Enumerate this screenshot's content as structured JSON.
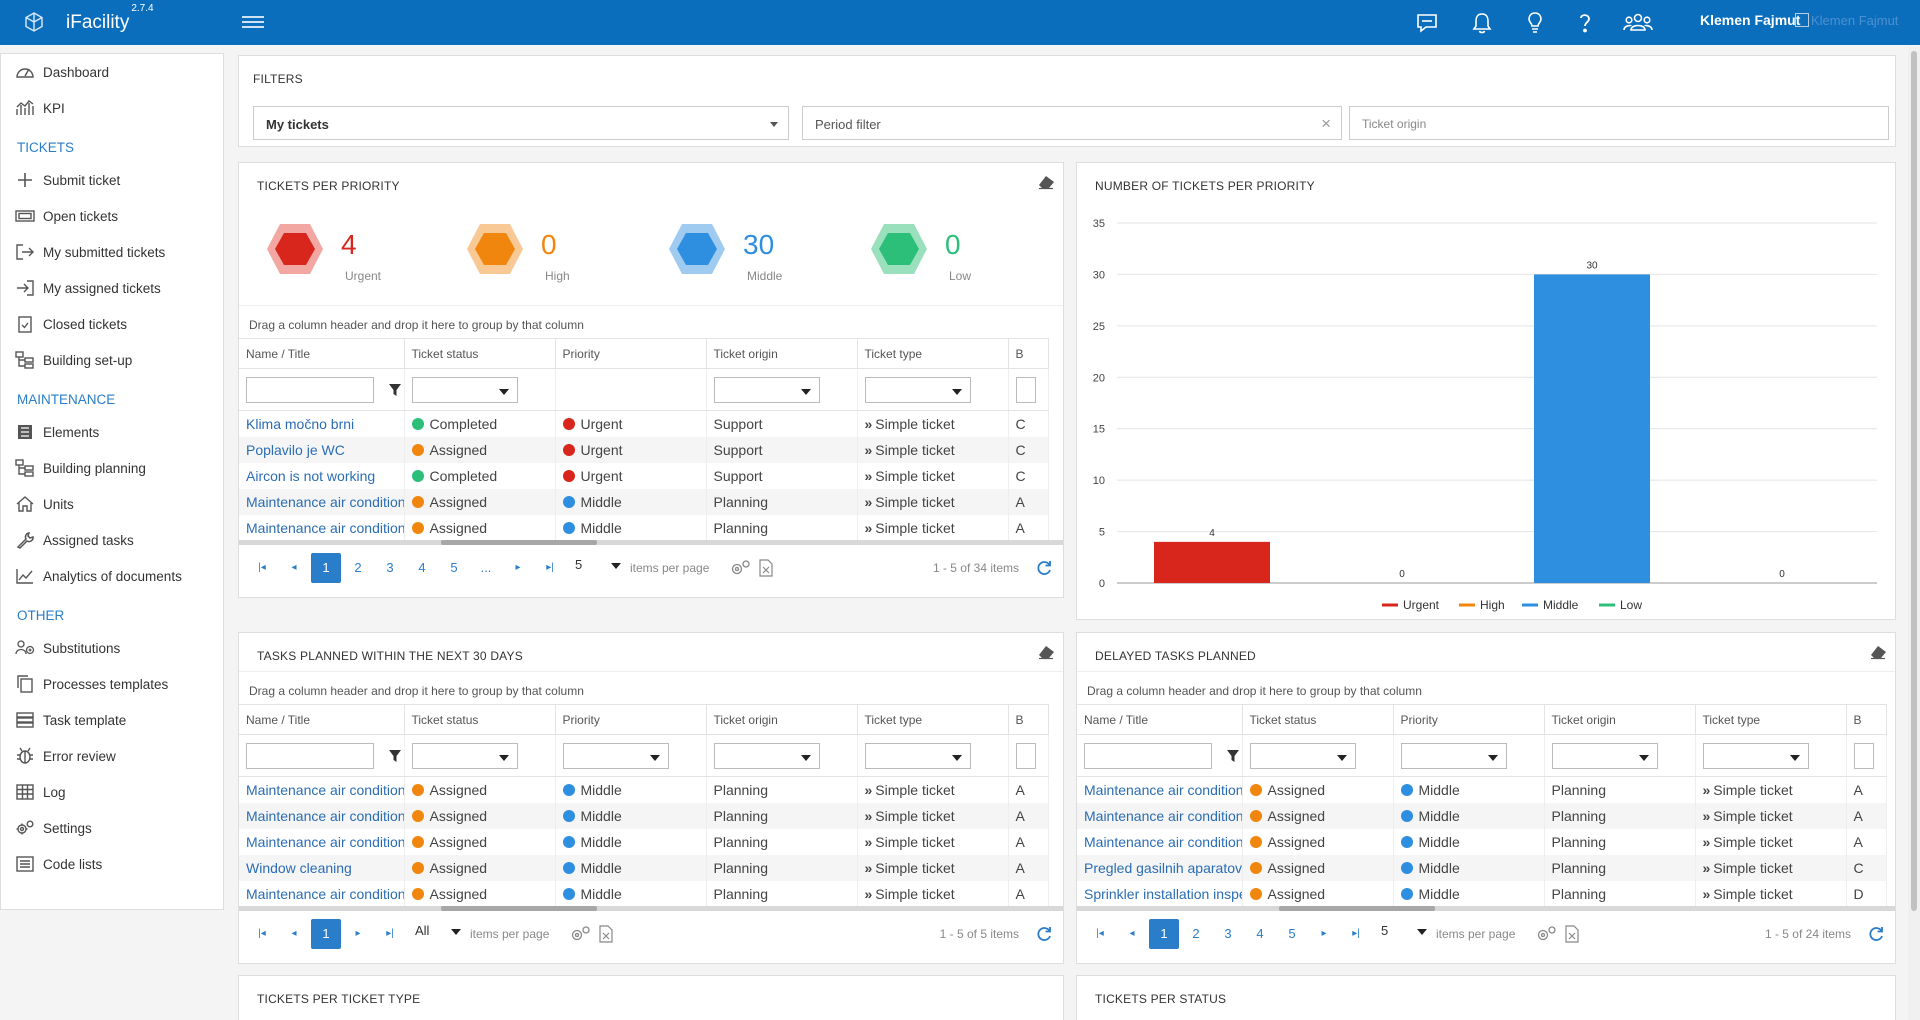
{
  "app": {
    "name": "iFacility",
    "version": "2.7.4",
    "user": "Klemen Fajmut",
    "user_image_alt": "Klemen Fajmut"
  },
  "topbar_icons": [
    "chat-icon",
    "bell-icon",
    "lightbulb-icon",
    "help-icon",
    "users-icon"
  ],
  "sidebar": {
    "items": [
      {
        "label": "Dashboard",
        "icon": "dashboard-icon"
      },
      {
        "label": "KPI",
        "icon": "kpi-icon"
      }
    ],
    "tickets_head": "TICKETS",
    "tickets": [
      {
        "label": "Submit ticket",
        "icon": "plus-icon"
      },
      {
        "label": "Open tickets",
        "icon": "ticket-icon"
      },
      {
        "label": "My submitted tickets",
        "icon": "sign-out-icon"
      },
      {
        "label": "My assigned tickets",
        "icon": "sign-in-icon"
      },
      {
        "label": "Closed tickets",
        "icon": "clipboard-check-icon"
      },
      {
        "label": "Building set-up",
        "icon": "building-tree-icon"
      }
    ],
    "maintenance_head": "MAINTENANCE",
    "maintenance": [
      {
        "label": "Elements",
        "icon": "list-icon"
      },
      {
        "label": "Building planning",
        "icon": "building-tree-icon"
      },
      {
        "label": "Units",
        "icon": "home-icon"
      },
      {
        "label": "Assigned tasks",
        "icon": "wrench-icon"
      },
      {
        "label": "Analytics of documents",
        "icon": "line-chart-icon"
      }
    ],
    "other_head": "OTHER",
    "other": [
      {
        "label": "Substitutions",
        "icon": "user-swap-icon"
      },
      {
        "label": "Processes templates",
        "icon": "copy-icon"
      },
      {
        "label": "Task template",
        "icon": "task-list-icon"
      },
      {
        "label": "Error review",
        "icon": "bug-icon"
      },
      {
        "label": "Log",
        "icon": "table-icon"
      },
      {
        "label": "Settings",
        "icon": "cogs-icon"
      },
      {
        "label": "Code lists",
        "icon": "list-alt-icon"
      }
    ]
  },
  "filters": {
    "title": "FILTERS",
    "my_tickets": "My tickets",
    "period_placeholder": "Period filter",
    "origin_placeholder": "Ticket origin"
  },
  "priority_panel": {
    "title": "TICKETS PER PRIORITY",
    "counts": [
      {
        "label": "Urgent",
        "value": "4",
        "color": "#d9261c",
        "halo": "#f2a7a2"
      },
      {
        "label": "High",
        "value": "0",
        "color": "#f0860d",
        "halo": "#f8c995"
      },
      {
        "label": "Middle",
        "value": "30",
        "color": "#2e8ee0",
        "halo": "#9fcbf1"
      },
      {
        "label": "Low",
        "value": "0",
        "color": "#2bbf7a",
        "halo": "#9ae0bd"
      }
    ]
  },
  "grid_common": {
    "group_hint": "Drag a column header and drop it here to group by that column",
    "columns": [
      "Name / Title",
      "Ticket status",
      "Priority",
      "Ticket origin",
      "Ticket type",
      "B"
    ],
    "items_per_page": "items per page"
  },
  "status_colors": {
    "Completed": "#2bbf7a",
    "Assigned": "#f0860d",
    "Urgent": "#d9261c",
    "Middle": "#2e8ee0"
  },
  "tickets_grid": {
    "rows": [
      {
        "name": "Klima močno brni",
        "status": "Completed",
        "priority": "Urgent",
        "origin": "Support",
        "type": "Simple ticket",
        "extra": "C"
      },
      {
        "name": "Poplavilo je WC",
        "status": "Assigned",
        "priority": "Urgent",
        "origin": "Support",
        "type": "Simple ticket",
        "extra": "C"
      },
      {
        "name": "Aircon is not working",
        "status": "Completed",
        "priority": "Urgent",
        "origin": "Support",
        "type": "Simple ticket",
        "extra": "C"
      },
      {
        "name": "Maintenance air conditioners",
        "status": "Assigned",
        "priority": "Middle",
        "origin": "Planning",
        "type": "Simple ticket",
        "extra": "A"
      },
      {
        "name": "Maintenance air conditioners",
        "status": "Assigned",
        "priority": "Middle",
        "origin": "Planning",
        "type": "Simple ticket",
        "extra": "A"
      }
    ],
    "pages": [
      "1",
      "2",
      "3",
      "4",
      "5",
      "..."
    ],
    "page_size": "5",
    "info": "1 - 5 of 34 items"
  },
  "chart_panel": {
    "title": "NUMBER OF TICKETS PER PRIORITY"
  },
  "chart_data": {
    "type": "bar",
    "categories": [
      "Urgent",
      "High",
      "Middle",
      "Low"
    ],
    "values": [
      4,
      0,
      30,
      0
    ],
    "colors": [
      "#d9261c",
      "#f0860d",
      "#2e8ee0",
      "#2bbf7a"
    ],
    "ylim": [
      0,
      35
    ],
    "yticks": [
      0,
      5,
      10,
      15,
      20,
      25,
      30,
      35
    ],
    "legend": [
      "Urgent",
      "High",
      "Middle",
      "Low"
    ],
    "legend_position": "bottom",
    "grid": true
  },
  "tasks30_panel": {
    "title": "TASKS PLANNED WITHIN THE NEXT 30 DAYS",
    "rows": [
      {
        "name": "Maintenance air conditioners",
        "status": "Assigned",
        "priority": "Middle",
        "origin": "Planning",
        "type": "Simple ticket",
        "extra": "A"
      },
      {
        "name": "Maintenance air conditioners",
        "status": "Assigned",
        "priority": "Middle",
        "origin": "Planning",
        "type": "Simple ticket",
        "extra": "A"
      },
      {
        "name": "Maintenance air conditioners",
        "status": "Assigned",
        "priority": "Middle",
        "origin": "Planning",
        "type": "Simple ticket",
        "extra": "A"
      },
      {
        "name": "Window cleaning",
        "status": "Assigned",
        "priority": "Middle",
        "origin": "Planning",
        "type": "Simple ticket",
        "extra": "A"
      },
      {
        "name": "Maintenance air conditioners",
        "status": "Assigned",
        "priority": "Middle",
        "origin": "Planning",
        "type": "Simple ticket",
        "extra": "A"
      }
    ],
    "pages": [
      "1"
    ],
    "page_size": "All",
    "info": "1 - 5 of 5 items"
  },
  "delayed_panel": {
    "title": "DELAYED TASKS PLANNED",
    "rows": [
      {
        "name": "Maintenance air conditioners",
        "status": "Assigned",
        "priority": "Middle",
        "origin": "Planning",
        "type": "Simple ticket",
        "extra": "A"
      },
      {
        "name": "Maintenance air conditioners",
        "status": "Assigned",
        "priority": "Middle",
        "origin": "Planning",
        "type": "Simple ticket",
        "extra": "A"
      },
      {
        "name": "Maintenance air conditioners",
        "status": "Assigned",
        "priority": "Middle",
        "origin": "Planning",
        "type": "Simple ticket",
        "extra": "A"
      },
      {
        "name": "Pregled gasilnih aparatov",
        "status": "Assigned",
        "priority": "Middle",
        "origin": "Planning",
        "type": "Simple ticket",
        "extra": "C"
      },
      {
        "name": "Sprinkler installation inspect...",
        "status": "Assigned",
        "priority": "Middle",
        "origin": "Planning",
        "type": "Simple ticket",
        "extra": "D"
      }
    ],
    "pages": [
      "1",
      "2",
      "3",
      "4",
      "5"
    ],
    "page_size": "5",
    "info": "1 - 5 of 24 items"
  },
  "bottom_panels": {
    "type_title": "TICKETS PER TICKET TYPE",
    "status_title": "TICKETS PER STATUS"
  }
}
